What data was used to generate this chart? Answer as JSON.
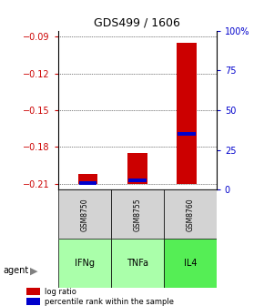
{
  "title": "GDS499 / 1606",
  "samples": [
    "GSM8750",
    "GSM8755",
    "GSM8760"
  ],
  "agents": [
    "IFNg",
    "TNFa",
    "IL4"
  ],
  "agent_colors": [
    "#ccffcc",
    "#ccffcc",
    "#66ff66"
  ],
  "log_ratio_values": [
    -0.202,
    -0.185,
    -0.095
  ],
  "log_ratio_base": -0.21,
  "percentile_values": [
    0.04,
    0.06,
    0.35
  ],
  "ylim_left": [
    -0.215,
    -0.085
  ],
  "yticks_left": [
    -0.21,
    -0.18,
    -0.15,
    -0.12,
    -0.09
  ],
  "yticks_right": [
    0,
    25,
    50,
    75,
    100
  ],
  "ylim_right": [
    0,
    100
  ],
  "bar_color": "#cc0000",
  "percentile_color": "#0000cc",
  "background_color": "#ffffff",
  "plot_bg": "#ffffff",
  "grid_color": "#000000",
  "left_tick_color": "#cc0000",
  "right_tick_color": "#0000cc",
  "bar_width": 0.4
}
